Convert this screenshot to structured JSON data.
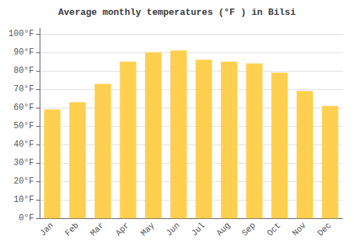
{
  "chart_data": {
    "type": "bar",
    "title": "Average monthly temperatures (°F ) in Bilsi",
    "categories": [
      "Jan",
      "Feb",
      "Mar",
      "Apr",
      "May",
      "Jun",
      "Jul",
      "Aug",
      "Sep",
      "Oct",
      "Nov",
      "Dec"
    ],
    "values": [
      59,
      63,
      73,
      85,
      90,
      91,
      86,
      85,
      84,
      79,
      69,
      61
    ],
    "color": "#FFD050",
    "ylim": [
      0,
      103
    ],
    "yticks": [
      {
        "value": 0,
        "label": "0°F"
      },
      {
        "value": 10,
        "label": "10°F"
      },
      {
        "value": 20,
        "label": "20°F"
      },
      {
        "value": 30,
        "label": "30°F"
      },
      {
        "value": 40,
        "label": "40°F"
      },
      {
        "value": 50,
        "label": "50°F"
      },
      {
        "value": 60,
        "label": "60°F"
      },
      {
        "value": 70,
        "label": "70°F"
      },
      {
        "value": 80,
        "label": "80°F"
      },
      {
        "value": 90,
        "label": "90°F"
      },
      {
        "value": 100,
        "label": "100°F"
      }
    ],
    "grid": true
  }
}
